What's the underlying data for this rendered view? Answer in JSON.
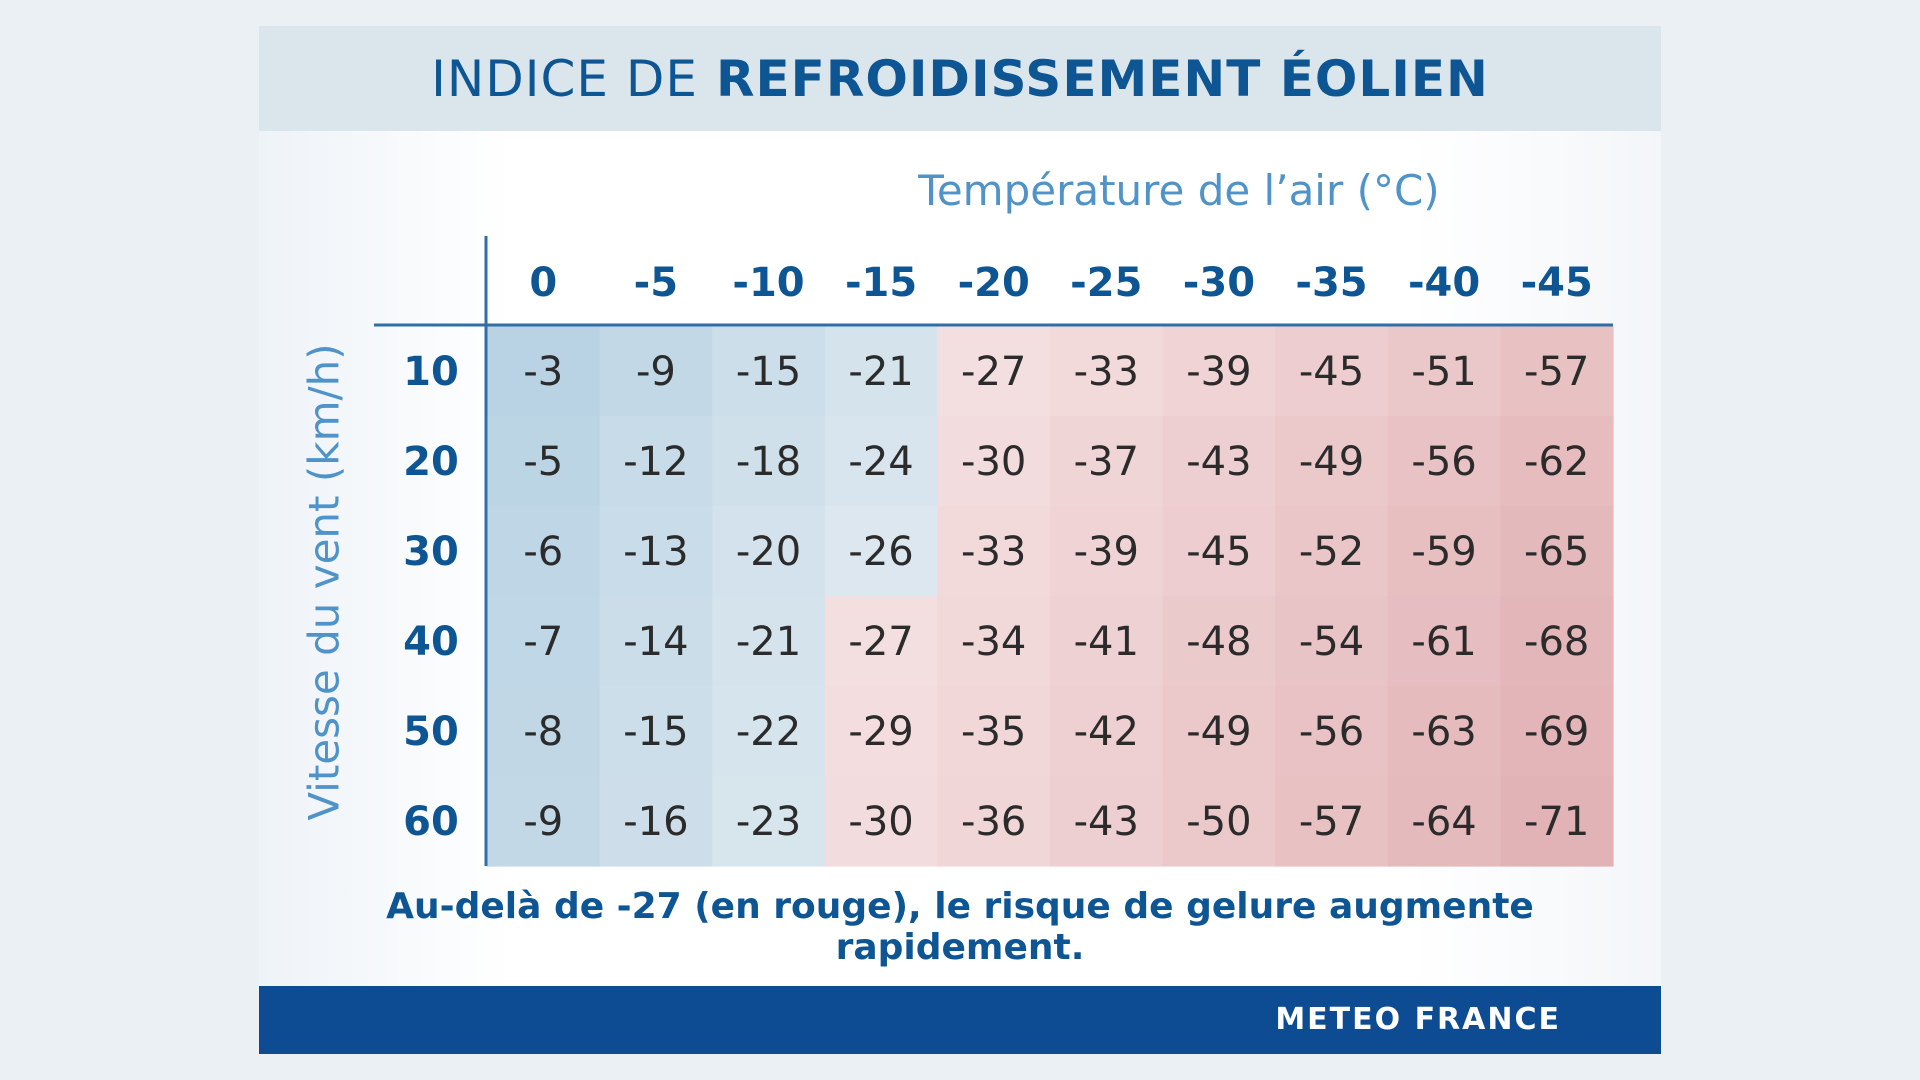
{
  "title": {
    "light": "INDICE DE",
    "bold": "REFROIDISSEMENT ÉOLIEN"
  },
  "footnote": "Au-delà de -27 (en rouge), le risque de gelure augmente rapidement.",
  "brand": "METEO FRANCE",
  "colors": {
    "accent": "#0e5593",
    "axis_title": "#4f93c8",
    "cold_cell": "#bcd6e6",
    "danger_cell": "#e8bcbf",
    "footer": "#0d4c92"
  },
  "chart_data": {
    "type": "heatmap",
    "xlabel": "Température de l’air (°C)",
    "ylabel": "Vitesse du vent (km/h)",
    "x": [
      "0",
      "-5",
      "-10",
      "-15",
      "-20",
      "-25",
      "-30",
      "-35",
      "-40",
      "-45"
    ],
    "y": [
      "10",
      "20",
      "30",
      "40",
      "50",
      "60"
    ],
    "threshold": -27,
    "values": [
      [
        -3,
        -9,
        -15,
        -21,
        -27,
        -33,
        -39,
        -45,
        -51,
        -57
      ],
      [
        -5,
        -12,
        -18,
        -24,
        -30,
        -37,
        -43,
        -49,
        -56,
        -62
      ],
      [
        -6,
        -13,
        -20,
        -26,
        -33,
        -39,
        -45,
        -52,
        -59,
        -65
      ],
      [
        -7,
        -14,
        -21,
        -27,
        -34,
        -41,
        -48,
        -54,
        -61,
        -68
      ],
      [
        -8,
        -15,
        -22,
        -29,
        -35,
        -42,
        -49,
        -56,
        -63,
        -69
      ],
      [
        -9,
        -16,
        -23,
        -30,
        -36,
        -43,
        -50,
        -57,
        -64,
        -71
      ]
    ]
  }
}
